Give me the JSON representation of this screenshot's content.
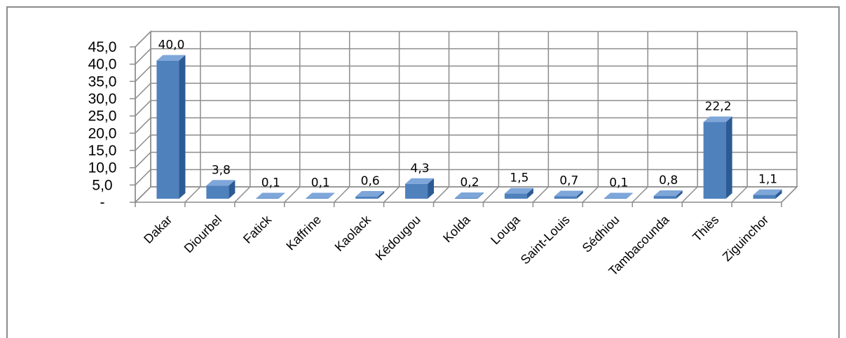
{
  "chart_data": {
    "type": "bar",
    "title": "",
    "xlabel": "",
    "ylabel": "",
    "ylim": [
      0,
      45
    ],
    "yticks": [
      "-",
      "5,0",
      "10,0",
      "15,0",
      "20,0",
      "25,0",
      "30,0",
      "35,0",
      "40,0",
      "45,0"
    ],
    "grid": true,
    "categories": [
      "Dakar",
      "Diourbel",
      "Fatick",
      "Kaffrine",
      "Kaolack",
      "Kédougou",
      "Kolda",
      "Louga",
      "Saint-Louis",
      "Sédhiou",
      "Tambacounda",
      "Thiès",
      "Ziguinchor"
    ],
    "values": [
      40.0,
      3.8,
      0.1,
      0.1,
      0.6,
      4.3,
      0.2,
      1.5,
      0.7,
      0.1,
      0.8,
      22.2,
      1.1
    ],
    "data_labels": [
      "40,0",
      "3,8",
      "0,1",
      "0,1",
      "0,6",
      "4,3",
      "0,2",
      "1,5",
      "0,7",
      "0,1",
      "0,8",
      "22,2",
      "1,1"
    ],
    "colors": {
      "bar_front": "#4f81bd",
      "bar_side": "#2c5b94",
      "bar_top": "#7ea6d9",
      "grid": "#8c8c8c"
    }
  }
}
